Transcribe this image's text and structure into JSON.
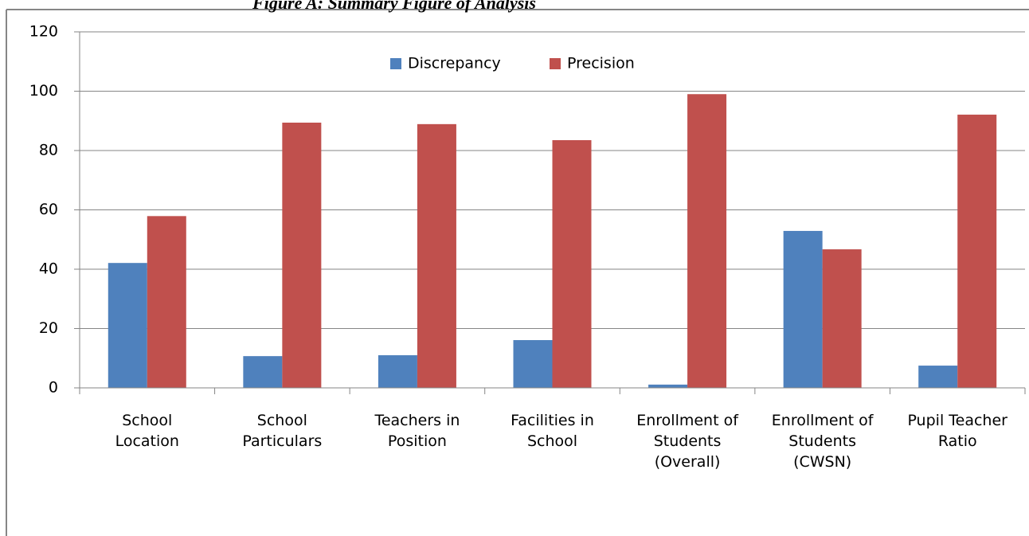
{
  "chart_data": {
    "type": "bar",
    "title": "Figure A: Summary Figure of Analysis",
    "categories": [
      "School\nLocation",
      "School\nParticulars",
      "Teachers in\nPosition",
      "Facilities in\nSchool",
      "Enrollment of\nStudents\n(Overall)",
      "Enrollment of\nStudents\n(CWSN)",
      "Pupil Teacher\nRatio"
    ],
    "series": [
      {
        "name": "Discrepancy",
        "color": "#4f81bd",
        "values": [
          42.1,
          10.7,
          11,
          16.1,
          1.1,
          52.9,
          7.5
        ]
      },
      {
        "name": "Precision",
        "color": "#c0504d",
        "values": [
          57.9,
          89.4,
          88.9,
          83.5,
          99,
          46.7,
          92.1
        ]
      }
    ],
    "ylim": [
      0,
      120
    ],
    "yticks": [
      0,
      20,
      40,
      60,
      80,
      100,
      120
    ],
    "grid": true,
    "legend": "top"
  }
}
